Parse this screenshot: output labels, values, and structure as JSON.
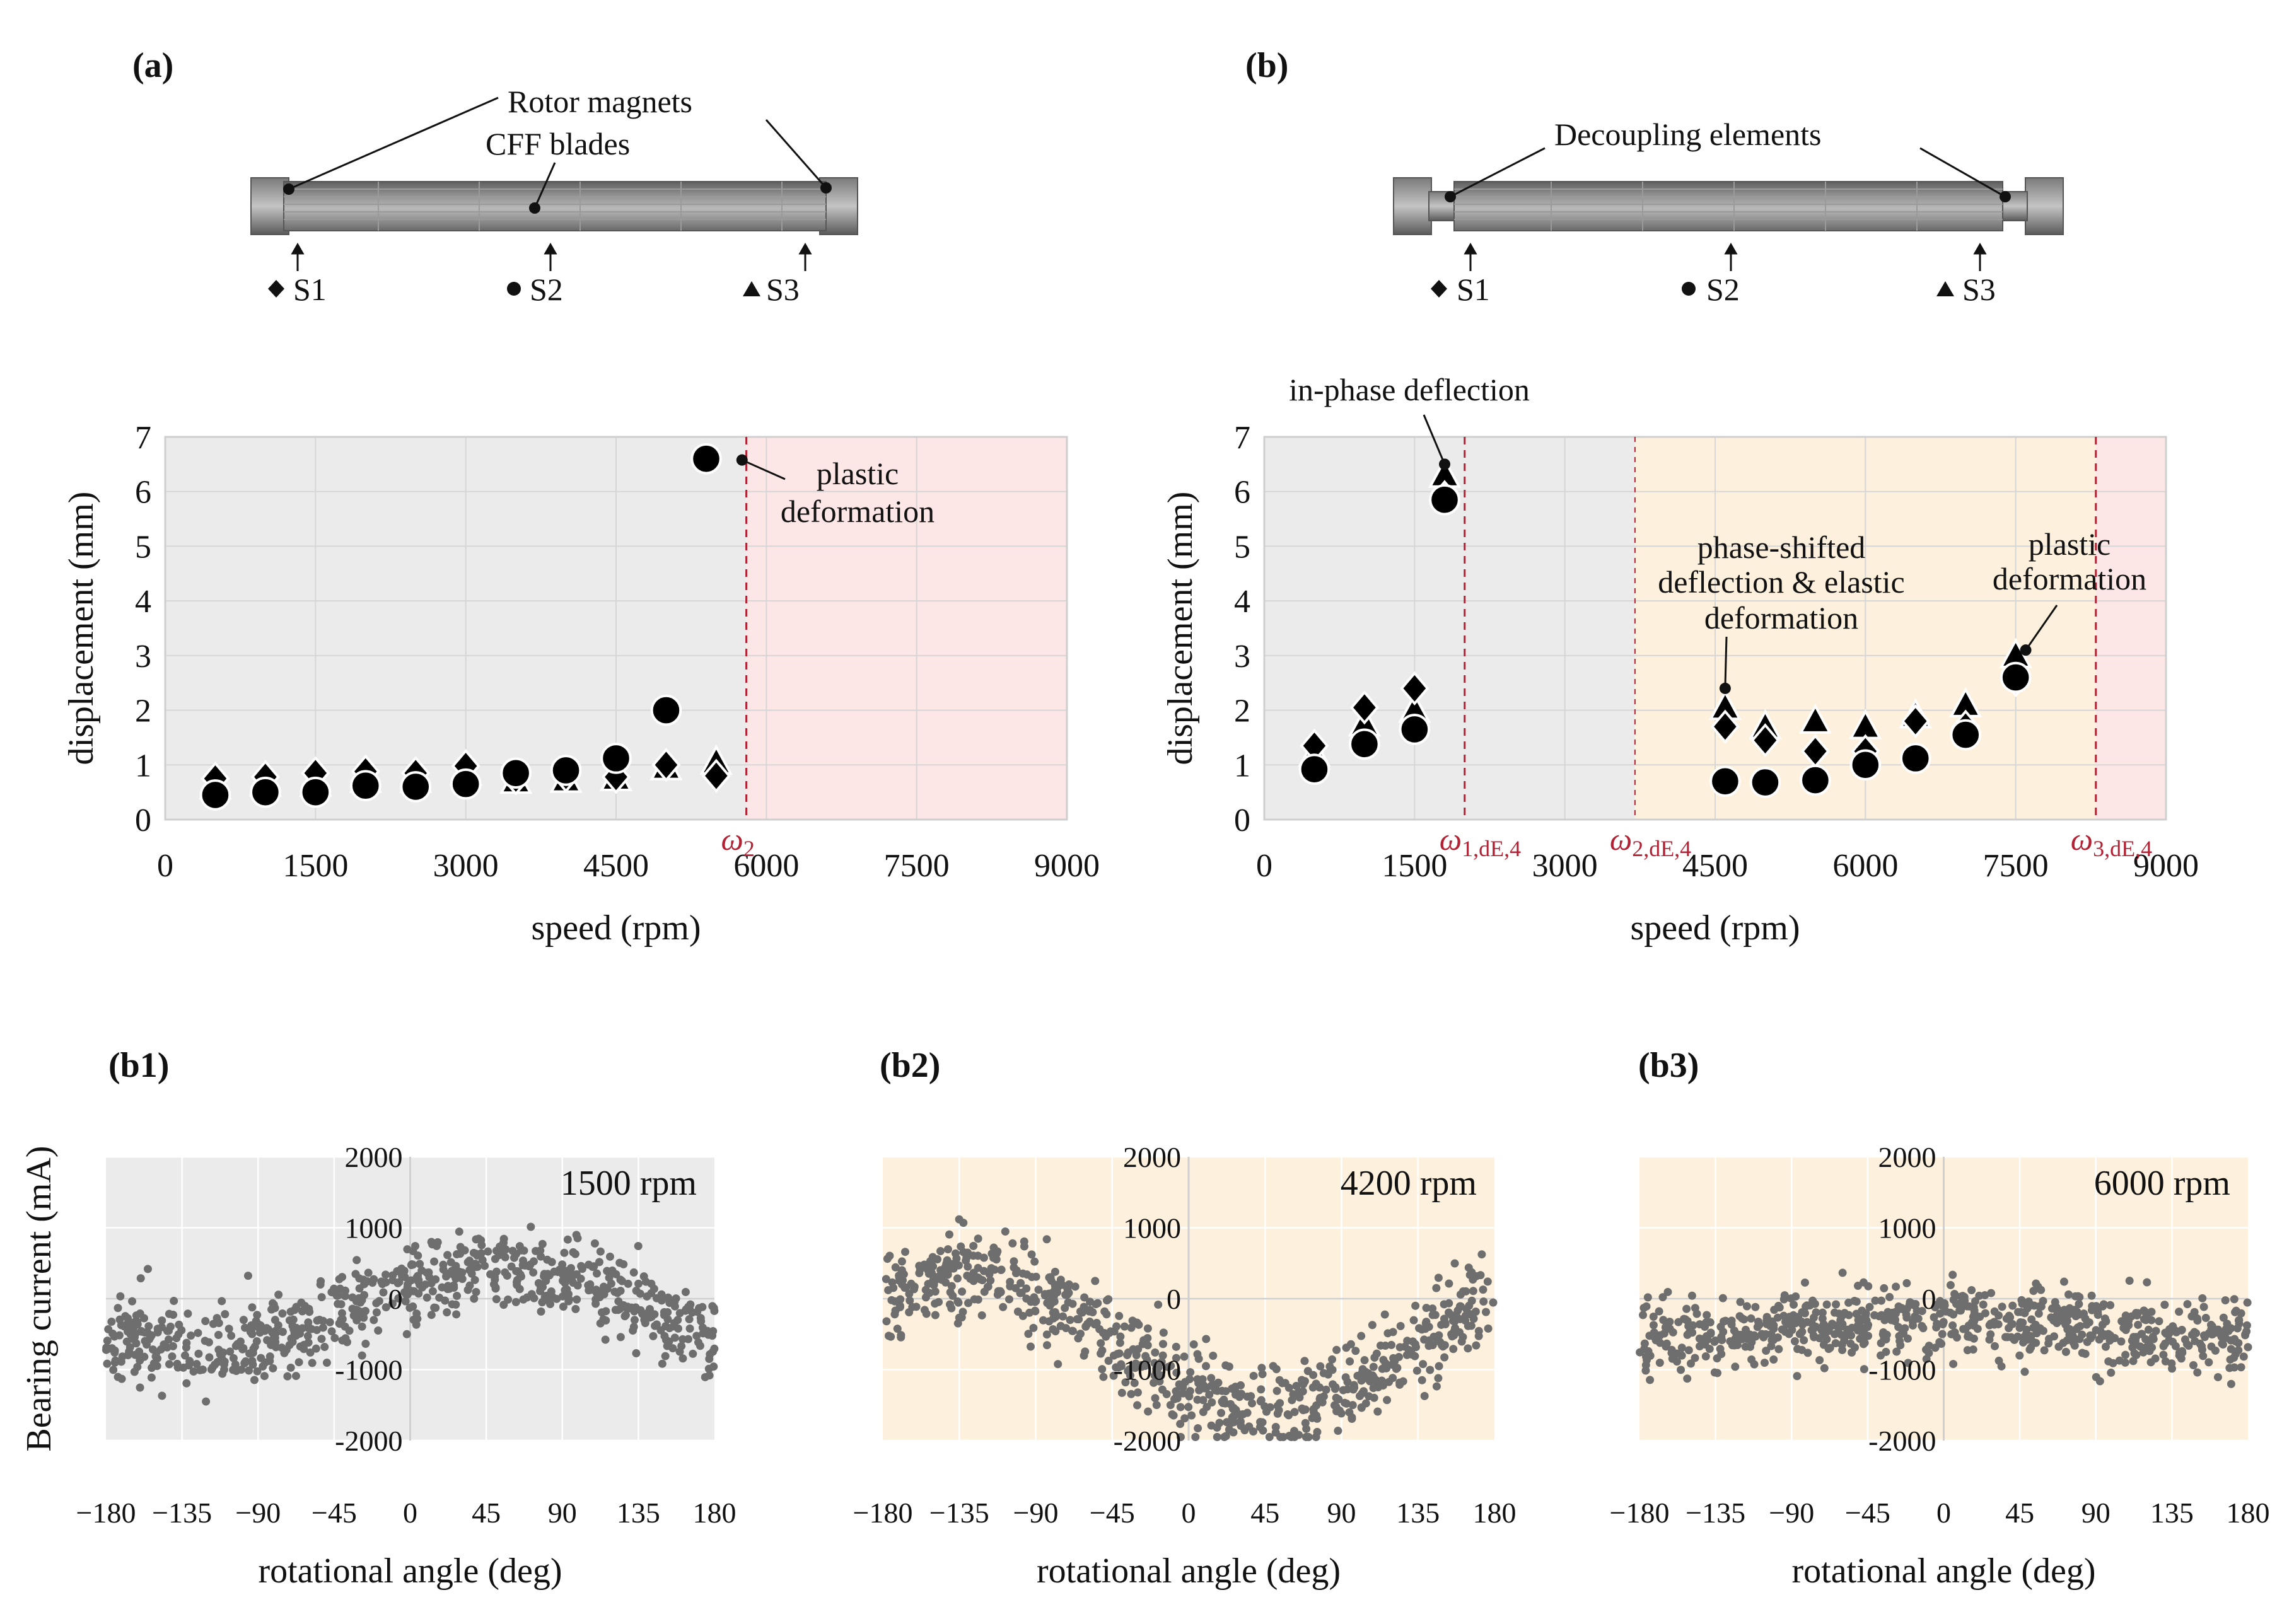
{
  "panels": {
    "a": {
      "label": "(a)"
    },
    "b": {
      "label": "(b)"
    },
    "b1": {
      "label": "(b1)"
    },
    "b2": {
      "label": "(b2)"
    },
    "b3": {
      "label": "(b3)"
    }
  },
  "rotor_a": {
    "callouts": [
      "Rotor magnets",
      "CFF blades"
    ],
    "sensors": [
      {
        "marker": "diamond",
        "name": "S1"
      },
      {
        "marker": "circle",
        "name": "S2"
      },
      {
        "marker": "triangle",
        "name": "S3"
      }
    ]
  },
  "rotor_b": {
    "callouts": [
      "Decoupling elements"
    ],
    "sensors": [
      {
        "marker": "diamond",
        "name": "S1"
      },
      {
        "marker": "circle",
        "name": "S2"
      },
      {
        "marker": "triangle",
        "name": "S3"
      }
    ]
  },
  "colors": {
    "gray_region": "#ebebeb",
    "orange_region": "#fdf0dc",
    "pink_region": "#fde6e6",
    "limit_line": "#b22234",
    "scatter_dot": "#6e6e6e"
  },
  "chart_data": [
    {
      "id": "a",
      "type": "scatter",
      "xlabel": "speed (rpm)",
      "ylabel": "displacement (mm)",
      "xlim": [
        0,
        9000
      ],
      "ylim": [
        0,
        7
      ],
      "xticks": [
        "0",
        "1500",
        "3000",
        "4500",
        "6000",
        "7500",
        "9000"
      ],
      "yticks": [
        "0",
        "1",
        "2",
        "3",
        "4",
        "5",
        "6",
        "7"
      ],
      "regions": [
        {
          "from": 0,
          "to": 5800,
          "color": "gray"
        },
        {
          "from": 5800,
          "to": 9000,
          "color": "pink"
        }
      ],
      "limits": [
        {
          "x": 5800,
          "label": "ω",
          "sub": "2"
        }
      ],
      "annotations": [
        {
          "text_lines": [
            "plastic",
            "deformation"
          ],
          "point": [
            5600,
            6.6
          ]
        }
      ],
      "series": [
        {
          "name": "S1",
          "marker": "diamond",
          "points": [
            [
              500,
              0.75
            ],
            [
              1000,
              0.78
            ],
            [
              1500,
              0.85
            ],
            [
              2000,
              0.88
            ],
            [
              2500,
              0.85
            ],
            [
              3000,
              0.98
            ],
            [
              3500,
              0.75
            ],
            [
              4000,
              0.8
            ],
            [
              4500,
              0.78
            ],
            [
              5000,
              1.0
            ],
            [
              5500,
              0.8
            ]
          ]
        },
        {
          "name": "S2",
          "marker": "circle",
          "points": [
            [
              500,
              0.45
            ],
            [
              1000,
              0.5
            ],
            [
              1500,
              0.5
            ],
            [
              2000,
              0.62
            ],
            [
              2500,
              0.6
            ],
            [
              3000,
              0.65
            ],
            [
              3500,
              0.85
            ],
            [
              4000,
              0.9
            ],
            [
              4500,
              1.12
            ],
            [
              5000,
              2.0
            ],
            [
              5400,
              6.6
            ]
          ]
        },
        {
          "name": "S3",
          "marker": "triangle",
          "points": [
            [
              500,
              0.6
            ],
            [
              1000,
              0.65
            ],
            [
              1500,
              0.65
            ],
            [
              2000,
              0.72
            ],
            [
              2500,
              0.72
            ],
            [
              3000,
              0.85
            ],
            [
              3500,
              0.7
            ],
            [
              4000,
              0.72
            ],
            [
              4500,
              0.75
            ],
            [
              5000,
              0.95
            ],
            [
              5500,
              1.05
            ]
          ]
        }
      ]
    },
    {
      "id": "b",
      "type": "scatter",
      "xlabel": "speed (rpm)",
      "ylabel": "displacement (mm)",
      "xlim": [
        0,
        9000
      ],
      "ylim": [
        0,
        7
      ],
      "xticks": [
        "0",
        "1500",
        "3000",
        "4500",
        "6000",
        "7500",
        "9000"
      ],
      "yticks": [
        "0",
        "1",
        "2",
        "3",
        "4",
        "5",
        "6",
        "7"
      ],
      "regions": [
        {
          "from": 0,
          "to": 3700,
          "color": "gray"
        },
        {
          "from": 3700,
          "to": 8300,
          "color": "orange"
        },
        {
          "from": 8300,
          "to": 9000,
          "color": "pink"
        }
      ],
      "limits": [
        {
          "x": 2000,
          "label": "ω",
          "sub": "1,dE,4",
          "style": "dashed"
        },
        {
          "x": 3700,
          "label": "ω",
          "sub": "2,dE,4",
          "style": "dashed-thin"
        },
        {
          "x": 8300,
          "label": "ω",
          "sub": "3,dE,4",
          "style": "dashed"
        }
      ],
      "annotations": [
        {
          "text_lines": [
            "in-phase deflection"
          ],
          "point": [
            1800,
            6.5
          ]
        },
        {
          "text_lines": [
            "phase-shifted",
            "deflection & elastic",
            "deformation"
          ],
          "point": [
            4600,
            2.4
          ]
        },
        {
          "text_lines": [
            "plastic",
            "deformation"
          ],
          "point": [
            7600,
            3.1
          ]
        }
      ],
      "series": [
        {
          "name": "S1",
          "marker": "diamond",
          "points": [
            [
              500,
              1.35
            ],
            [
              1000,
              2.05
            ],
            [
              1500,
              2.4
            ],
            [
              1800,
              5.9
            ],
            [
              4600,
              1.7
            ],
            [
              5000,
              1.45
            ],
            [
              5500,
              1.25
            ],
            [
              6000,
              1.25
            ],
            [
              6500,
              1.8
            ],
            [
              7000,
              1.7
            ],
            [
              7500,
              2.55
            ]
          ]
        },
        {
          "name": "S2",
          "marker": "circle",
          "points": [
            [
              500,
              0.92
            ],
            [
              1000,
              1.38
            ],
            [
              1500,
              1.65
            ],
            [
              1800,
              5.85
            ],
            [
              4600,
              0.7
            ],
            [
              5000,
              0.68
            ],
            [
              5500,
              0.72
            ],
            [
              6000,
              1.0
            ],
            [
              6500,
              1.12
            ],
            [
              7000,
              1.55
            ],
            [
              7500,
              2.6
            ]
          ]
        },
        {
          "name": "S3",
          "marker": "triangle",
          "points": [
            [
              500,
              1.2
            ],
            [
              1000,
              1.75
            ],
            [
              1500,
              2.0
            ],
            [
              1800,
              6.3
            ],
            [
              4600,
              2.05
            ],
            [
              5000,
              1.7
            ],
            [
              5500,
              1.8
            ],
            [
              6000,
              1.7
            ],
            [
              6500,
              1.9
            ],
            [
              7000,
              2.1
            ],
            [
              7500,
              3.0
            ]
          ]
        }
      ]
    },
    {
      "id": "b1",
      "type": "scatter",
      "label": "1500 rpm",
      "ylabel": "Bearing current (mA)",
      "xlabel": "rotational angle (deg)",
      "xlim": [
        -180,
        180
      ],
      "ylim": [
        -2000,
        2000
      ],
      "xticks": [
        "−180",
        "−135",
        "−90",
        "−45",
        "0",
        "45",
        "90",
        "135",
        "180"
      ],
      "yticks": [
        "2000",
        "1000",
        "0",
        "-1000",
        "-2000"
      ],
      "background": "gray",
      "trend": {
        "offset": -150,
        "amplitude": 550,
        "phase_deg": 50,
        "noise": 300
      },
      "n_points": 720
    },
    {
      "id": "b2",
      "type": "scatter",
      "label": "4200 rpm",
      "xlabel": "rotational angle (deg)",
      "xlim": [
        -180,
        180
      ],
      "ylim": [
        -2000,
        2000
      ],
      "xticks": [
        "−180",
        "−135",
        "−90",
        "−45",
        "0",
        "45",
        "90",
        "135",
        "180"
      ],
      "yticks": [
        "2000",
        "1000",
        "0",
        "-1000",
        "-2000"
      ],
      "background": "orange",
      "trend": {
        "offset": -600,
        "amplitude": 950,
        "phase_deg": -135,
        "noise": 320
      },
      "n_points": 720
    },
    {
      "id": "b3",
      "type": "scatter",
      "label": "6000 rpm",
      "xlabel": "rotational angle (deg)",
      "xlim": [
        -180,
        180
      ],
      "ylim": [
        -2000,
        2000
      ],
      "xticks": [
        "−180",
        "−135",
        "−90",
        "−45",
        "0",
        "45",
        "90",
        "135",
        "180"
      ],
      "yticks": [
        "2000",
        "1000",
        "0",
        "-1000",
        "-2000"
      ],
      "background": "orange",
      "trend": {
        "offset": -420,
        "amplitude": 120,
        "phase_deg": 0,
        "noise": 260
      },
      "n_points": 720
    }
  ]
}
